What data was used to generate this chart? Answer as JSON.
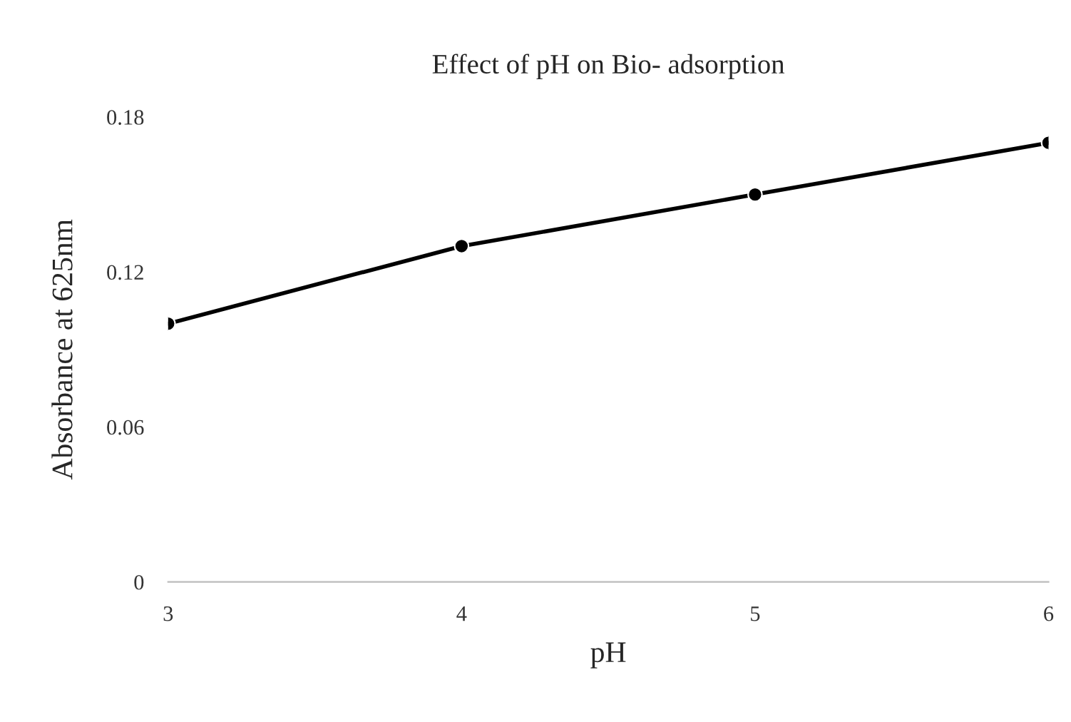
{
  "chart_data": {
    "type": "line",
    "title": "Effect of pH on Bio- adsorption",
    "xlabel": "pH",
    "ylabel": "Absorbance at 625nm",
    "x": [
      3,
      4,
      5,
      6
    ],
    "series": [
      {
        "color": "#000000",
        "values": [
          0.1,
          0.13,
          0.15,
          0.17
        ]
      }
    ],
    "xlim": [
      3,
      6
    ],
    "xticks": [
      3,
      4,
      5,
      6
    ],
    "ylim": [
      0,
      0.18
    ],
    "yticks": [
      0,
      0.06,
      0.12,
      0.18
    ],
    "marker": "circle",
    "line_style": "solid",
    "grid": false
  }
}
